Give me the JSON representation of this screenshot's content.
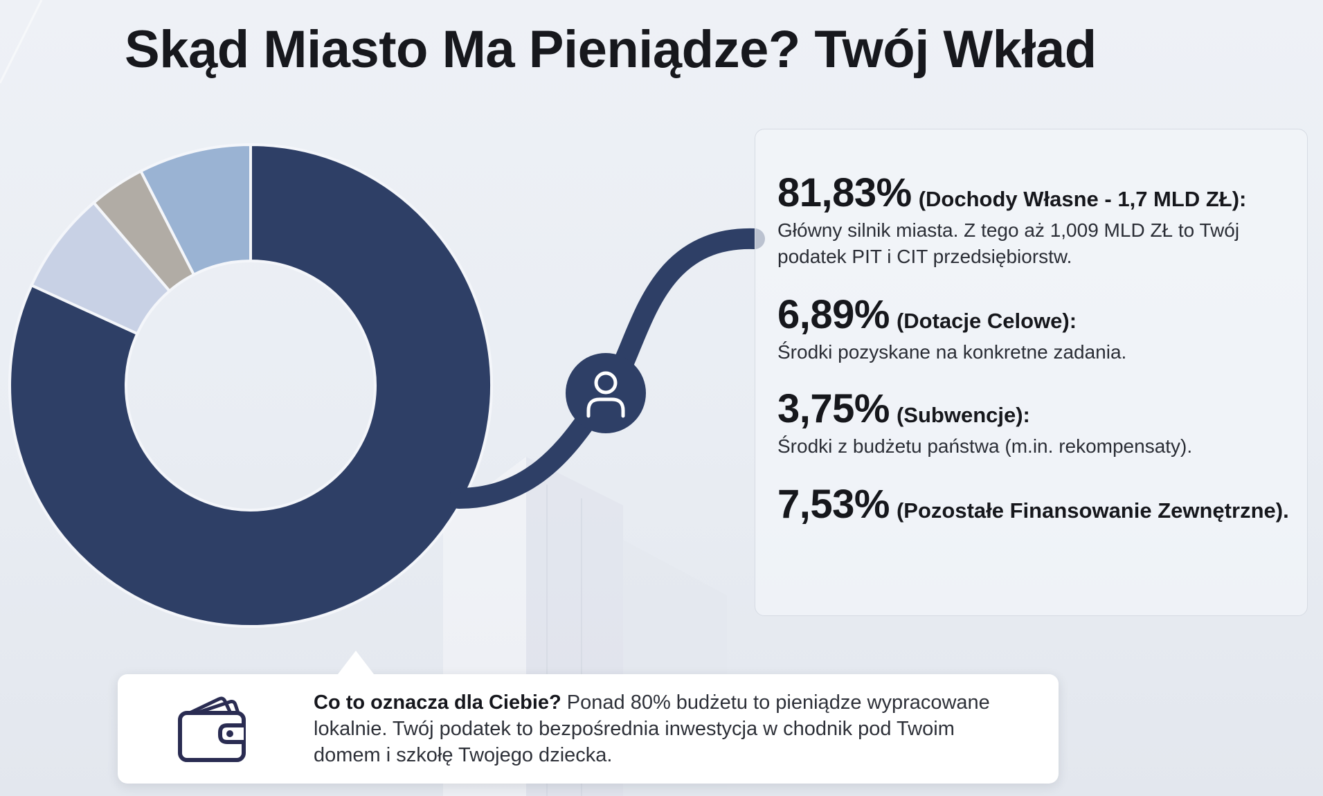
{
  "title": "Skąd Miasto Ma Pieniądze? Twój Wkład",
  "colors": {
    "accent": "#2e3f66",
    "slice_light_blue": "#9ab3d3",
    "slice_pale": "#c8d1e5",
    "slice_gray": "#b1aca5"
  },
  "chart_data": {
    "type": "pie",
    "categories": [
      "Dochody Własne - 1,7 MLD ZŁ",
      "Dotacje Celowe",
      "Subwencje",
      "Pozostałe Finansowanie Zewnętrzne"
    ],
    "values": [
      81.83,
      6.89,
      3.75,
      7.53
    ],
    "value_labels": [
      "81,83%",
      "6,89%",
      "3,75%",
      "7,53%"
    ],
    "descriptions": [
      "Główny silnik miasta. Z tego aż 1,009 MLD ZŁ to Twój podatek PIT i CIT przedsiębiorstw.",
      "Środki pozyskane na konkretne zadania.",
      "Środki z budżetu państwa (m.in. rekompensaty).",
      ""
    ],
    "slice_colors": [
      "#2e3f66",
      "#c8d1e5",
      "#b1aca5",
      "#9ab3d3"
    ]
  },
  "connector_icon": "user-icon",
  "callout": {
    "icon": "wallet-icon",
    "bold": "Co to oznacza dla Ciebie?",
    "text": " Ponad 80% budżetu to pieniądze wypracowane lokalnie. Twój podatek to bezpośrednia inwestycja w chodnik pod Twoim domem i szkołę Twojego dziecka."
  }
}
